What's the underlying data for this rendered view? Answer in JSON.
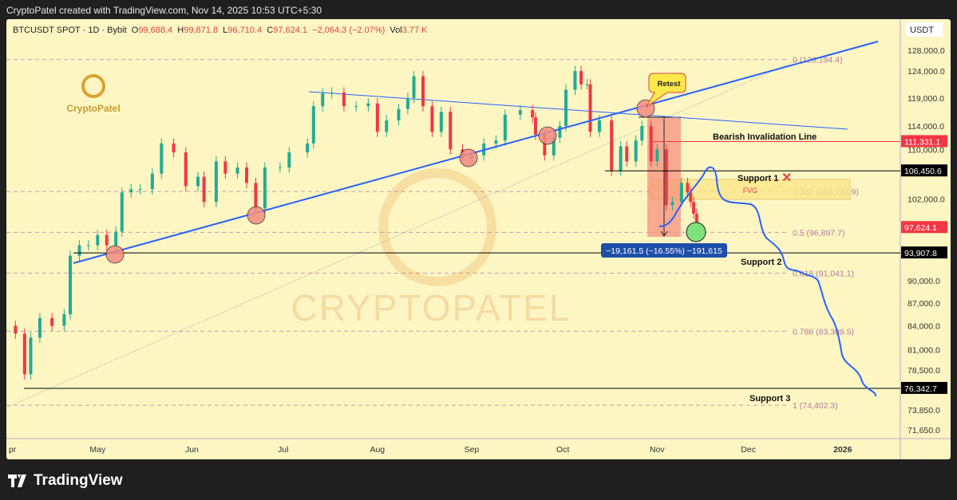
{
  "credit": "CryptoPatel created with TradingView.com, Nov 14, 2025 10:53 UTC+5:30",
  "legend": {
    "symbol": "BTCUSDT SPOT · 1D · Bybit",
    "o_label": "O",
    "o": "99,688.4",
    "h_label": "H",
    "h": "99,871.8",
    "l_label": "L",
    "l": "96,710.4",
    "c_label": "C",
    "c": "97,624.1",
    "change": "−2,064.3 (−2.07%)",
    "vol_label": "Vol",
    "vol": "3.77 K"
  },
  "brand": "TradingView",
  "logo_text": "CryptoPatel",
  "watermark": "CRYPTOPATEL",
  "colors": {
    "up": "#22ab94",
    "down": "#f23645",
    "trend": "#2962ff",
    "fib": "#b07aa1",
    "bg": "#fdf6c3"
  },
  "chart_data": {
    "type": "candlestick",
    "y_scale": "log",
    "currency": "USDT",
    "ylim": [
      70500,
      131000
    ],
    "y_ticks": [
      128000,
      124000,
      119000,
      114000,
      110000,
      102000,
      90000,
      87000,
      84000,
      81000,
      78500,
      73850,
      71650
    ],
    "y_tick_labels": [
      "128,000.0",
      "124,000.0",
      "119,000.0",
      "114,000.0",
      "110,000.0",
      "102,000.0",
      "90,000.0",
      "87,000.0",
      "84,000.0",
      "81,000.0",
      "78,500.0",
      "73,850.0",
      "71,650.0"
    ],
    "x_ticks": [
      {
        "label": "pr",
        "date": "2025-04-03"
      },
      {
        "label": "May",
        "date": "2025-05-01"
      },
      {
        "label": "Jun",
        "date": "2025-06-01"
      },
      {
        "label": "Jul",
        "date": "2025-07-01"
      },
      {
        "label": "Aug",
        "date": "2025-08-01"
      },
      {
        "label": "Sep",
        "date": "2025-09-01"
      },
      {
        "label": "Oct",
        "date": "2025-10-01"
      },
      {
        "label": "Nov",
        "date": "2025-11-01"
      },
      {
        "label": "Dec",
        "date": "2025-12-01"
      },
      {
        "label": "2026",
        "date": "2026-01-01"
      }
    ],
    "closes": [
      [
        "2025-04-01",
        84000
      ],
      [
        "2025-04-04",
        83000
      ],
      [
        "2025-04-07",
        78000
      ],
      [
        "2025-04-09",
        82500
      ],
      [
        "2025-04-12",
        85000
      ],
      [
        "2025-04-16",
        84000
      ],
      [
        "2025-04-20",
        85500
      ],
      [
        "2025-04-22",
        93500
      ],
      [
        "2025-04-25",
        95000
      ],
      [
        "2025-04-28",
        95000
      ],
      [
        "2025-05-01",
        96500
      ],
      [
        "2025-05-04",
        95000
      ],
      [
        "2025-05-07",
        97000
      ],
      [
        "2025-05-09",
        103000
      ],
      [
        "2025-05-12",
        103500
      ],
      [
        "2025-05-15",
        103500
      ],
      [
        "2025-05-19",
        106000
      ],
      [
        "2025-05-22",
        111000
      ],
      [
        "2025-05-26",
        109500
      ],
      [
        "2025-05-30",
        104000
      ],
      [
        "2025-06-03",
        105500
      ],
      [
        "2025-06-05",
        101500
      ],
      [
        "2025-06-09",
        108000
      ],
      [
        "2025-06-12",
        106000
      ],
      [
        "2025-06-16",
        107000
      ],
      [
        "2025-06-19",
        104500
      ],
      [
        "2025-06-22",
        100500
      ],
      [
        "2025-06-25",
        107000
      ],
      [
        "2025-06-30",
        107000
      ],
      [
        "2025-07-03",
        109500
      ],
      [
        "2025-07-09",
        111000
      ],
      [
        "2025-07-11",
        117500
      ],
      [
        "2025-07-14",
        119800
      ],
      [
        "2025-07-17",
        120000
      ],
      [
        "2025-07-21",
        117500
      ],
      [
        "2025-07-25",
        117500
      ],
      [
        "2025-07-29",
        118000
      ],
      [
        "2025-08-01",
        113000
      ],
      [
        "2025-08-04",
        115000
      ],
      [
        "2025-08-08",
        117000
      ],
      [
        "2025-08-11",
        119000
      ],
      [
        "2025-08-13",
        123000
      ],
      [
        "2025-08-16",
        117500
      ],
      [
        "2025-08-19",
        113000
      ],
      [
        "2025-08-22",
        116500
      ],
      [
        "2025-08-25",
        110000
      ],
      [
        "2025-08-29",
        108500
      ],
      [
        "2025-09-01",
        109000
      ],
      [
        "2025-09-05",
        111000
      ],
      [
        "2025-09-09",
        111500
      ],
      [
        "2025-09-12",
        116000
      ],
      [
        "2025-09-17",
        116800
      ],
      [
        "2025-09-21",
        115500
      ],
      [
        "2025-09-22",
        112500
      ],
      [
        "2025-09-25",
        109000
      ],
      [
        "2025-09-28",
        112000
      ],
      [
        "2025-09-30",
        114000
      ],
      [
        "2025-10-02",
        120500
      ],
      [
        "2025-10-05",
        124000
      ],
      [
        "2025-10-07",
        121500
      ],
      [
        "2025-10-09",
        121500
      ],
      [
        "2025-10-10",
        113000
      ],
      [
        "2025-10-13",
        115000
      ],
      [
        "2025-10-17",
        106500
      ],
      [
        "2025-10-20",
        110500
      ],
      [
        "2025-10-22",
        108000
      ],
      [
        "2025-10-25",
        111500
      ],
      [
        "2025-10-27",
        114000
      ],
      [
        "2025-10-30",
        108000
      ],
      [
        "2025-11-01",
        110000
      ],
      [
        "2025-11-04",
        101000
      ],
      [
        "2025-11-06",
        101500
      ],
      [
        "2025-11-09",
        104500
      ],
      [
        "2025-11-11",
        103000
      ],
      [
        "2025-11-12",
        101500
      ],
      [
        "2025-11-13",
        99700
      ],
      [
        "2025-11-14",
        97624.1
      ]
    ],
    "levels": [
      {
        "price": 111331.1,
        "label": "111,331.1",
        "text": "Bearish Invalidation Line",
        "color": "#f23645"
      },
      {
        "price": 106450.6,
        "label": "106,450.6",
        "text": "Support 1",
        "color": "#000"
      },
      {
        "price": 93907.8,
        "label": "93,907.8",
        "text": "Support 2",
        "color": "#000"
      },
      {
        "price": 76342.7,
        "label": "76,342.7",
        "text": "Support 3",
        "color": "#000"
      }
    ],
    "last_price": {
      "price": 97624.1,
      "label": "97,624.1"
    },
    "fib": [
      {
        "level": "0 (126,194.4)",
        "price": 126194.4
      },
      {
        "level": "0.382 (103,130.9)",
        "price": 103130.9
      },
      {
        "level": "0.5 (96,897.7)",
        "price": 96897.7
      },
      {
        "level": "0.618 (91,041.1)",
        "price": 91041.1
      },
      {
        "level": "0.786 (83,308.5)",
        "price": 83308.5
      },
      {
        "level": "1 (74,402.3)",
        "price": 74402.3
      }
    ],
    "annotations": {
      "retest": "Retest",
      "fvg": "FVG",
      "measure": "−19,161.5 (−16.55%) −191,615"
    }
  }
}
